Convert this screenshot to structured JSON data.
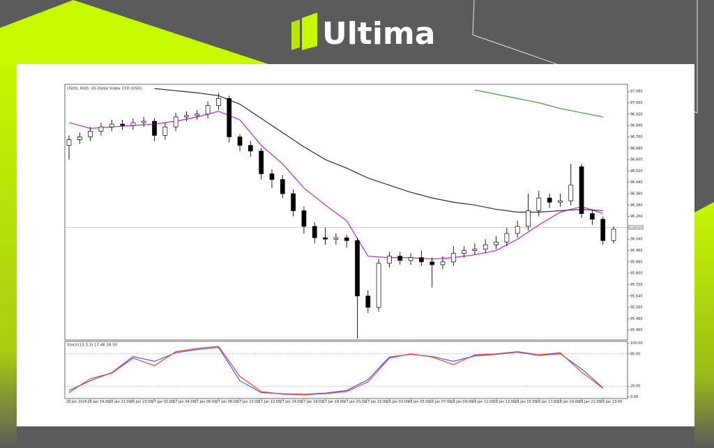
{
  "brand": "Ultima",
  "chart_data": [
    {
      "type": "candlestick",
      "title": "USDX, M30: US Dollar Index CFD (USD)",
      "categories": [
        "26 Jan 2026",
        null,
        "26 Jan 19:00",
        null,
        "26 Jan 21:00",
        null,
        "26 Jan 23:00",
        null,
        "27 Jan 02:00",
        null,
        "27 Jan 04:00",
        null,
        "27 Jan 06:00",
        null,
        "27 Jan 08:00",
        null,
        "27 Jan 10:00",
        null,
        "27 Jan 12:00",
        null,
        "27 Jan 14:00",
        null,
        "27 Jan 16:00",
        null,
        "27 Jan 18:00",
        null,
        "27 Jan 20:00",
        null,
        "27 Jan 22:00",
        null,
        "28 Jan 03:00",
        null,
        "28 Jan 05:00",
        null,
        "28 Jan 07:00",
        null,
        "28 Jan 09:00",
        null,
        "28 Jan 11:00",
        null,
        "28 Jan 13:00",
        null,
        "28 Jan 15:00",
        null,
        "28 Jan 17:00",
        null,
        "28 Jan 19:00",
        null,
        "28 Jan 21:00",
        null,
        "28 Jan 23:00",
        null
      ],
      "open": [
        96.7,
        96.74,
        96.76,
        96.8,
        96.83,
        96.85,
        96.84,
        96.86,
        96.87,
        96.77,
        96.83,
        96.9,
        96.91,
        96.92,
        96.98,
        97.03,
        96.76,
        96.7,
        96.66,
        96.5,
        96.46,
        96.36,
        96.24,
        96.13,
        96.05,
        96.04,
        96.05,
        96.03,
        95.64,
        95.56,
        95.87,
        95.92,
        95.89,
        95.91,
        95.88,
        95.86,
        95.88,
        95.94,
        95.96,
        95.97,
        96.0,
        96.02,
        96.08,
        96.13,
        96.24,
        96.33,
        96.3,
        96.31,
        96.55,
        96.22,
        96.18,
        96.03
      ],
      "high": [
        96.77,
        96.79,
        96.83,
        96.86,
        96.88,
        96.88,
        96.89,
        96.9,
        96.89,
        96.86,
        96.93,
        96.94,
        96.95,
        97.01,
        97.07,
        97.05,
        96.78,
        96.73,
        96.68,
        96.53,
        96.49,
        96.39,
        96.27,
        96.16,
        96.12,
        96.08,
        96.07,
        96.05,
        95.68,
        95.9,
        95.95,
        95.95,
        95.94,
        95.96,
        95.91,
        95.92,
        95.99,
        95.99,
        96.01,
        96.04,
        96.06,
        96.12,
        96.17,
        96.36,
        96.38,
        96.36,
        96.36,
        96.57,
        96.57,
        96.25,
        96.2,
        96.13
      ],
      "low": [
        96.6,
        96.71,
        96.73,
        96.77,
        96.8,
        96.81,
        96.81,
        96.83,
        96.73,
        96.74,
        96.8,
        96.87,
        96.88,
        96.89,
        96.95,
        96.72,
        96.66,
        96.62,
        96.46,
        96.4,
        96.33,
        96.2,
        96.08,
        96.01,
        96.0,
        96.0,
        95.98,
        95.34,
        95.52,
        95.53,
        95.84,
        95.86,
        95.86,
        95.85,
        95.7,
        95.83,
        95.85,
        95.91,
        95.93,
        95.94,
        95.97,
        95.99,
        96.05,
        96.1,
        96.2,
        96.26,
        96.27,
        96.28,
        96.19,
        96.14,
        96.0,
        96.01
      ],
      "close": [
        96.74,
        96.76,
        96.8,
        96.83,
        96.85,
        96.84,
        96.86,
        96.87,
        96.77,
        96.83,
        96.9,
        96.91,
        96.92,
        96.98,
        97.03,
        96.76,
        96.7,
        96.66,
        96.5,
        96.46,
        96.36,
        96.24,
        96.13,
        96.05,
        96.04,
        96.05,
        96.03,
        95.64,
        95.56,
        95.87,
        95.92,
        95.89,
        95.91,
        95.88,
        95.86,
        95.88,
        95.94,
        95.96,
        95.97,
        96.0,
        96.02,
        96.08,
        96.13,
        96.24,
        96.33,
        96.3,
        96.31,
        96.42,
        96.22,
        96.18,
        96.03,
        96.11
      ],
      "up_color": "#ffffff",
      "down_color": "#000000",
      "lines": [
        {
          "color": "#c21fd1",
          "x": [
            0,
            2,
            4,
            6,
            8,
            10,
            12,
            14,
            16,
            18,
            20,
            22,
            24,
            26,
            28,
            30,
            32,
            34,
            36,
            38,
            40,
            42,
            44,
            46,
            48,
            50
          ],
          "values": [
            96.86,
            96.82,
            96.83,
            96.84,
            96.85,
            96.87,
            96.9,
            96.94,
            96.88,
            96.7,
            96.57,
            96.4,
            96.28,
            96.17,
            95.92,
            95.91,
            95.91,
            95.9,
            95.91,
            95.93,
            95.96,
            96.04,
            96.14,
            96.23,
            96.27,
            96.22
          ]
        },
        {
          "color": "#2b2b2b",
          "x": [
            0,
            2,
            4,
            6,
            8,
            10,
            12,
            14,
            16,
            18,
            20,
            22,
            24,
            26,
            28,
            30,
            32,
            34,
            36,
            38,
            40,
            42,
            44,
            46,
            48,
            50
          ],
          "values": [
            null,
            null,
            null,
            null,
            97.1,
            97.085,
            97.07,
            97.05,
            96.99,
            96.89,
            96.79,
            96.69,
            96.6,
            96.54,
            96.47,
            96.42,
            96.37,
            96.33,
            96.3,
            96.28,
            96.25,
            96.23,
            96.23,
            96.24,
            96.25,
            96.24
          ]
        },
        {
          "color": "#3a9a3a",
          "x": [
            0,
            2,
            4,
            6,
            8,
            10,
            12,
            14,
            16,
            18,
            20,
            22,
            24,
            26,
            28,
            30,
            32,
            34,
            36,
            38,
            40,
            42,
            44,
            46,
            48,
            50
          ],
          "values": [
            null,
            null,
            null,
            null,
            null,
            null,
            null,
            null,
            null,
            null,
            null,
            null,
            null,
            null,
            null,
            null,
            null,
            null,
            null,
            97.09,
            97.06,
            97.03,
            97.0,
            96.96,
            96.93,
            96.9
          ]
        }
      ],
      "current_price": 96.123,
      "ylim": [
        95.33,
        97.13
      ],
      "yticks": [
        {
          "value": 95.4,
          "label": "95.400"
        },
        {
          "value": 95.48,
          "label": "95.480"
        },
        {
          "value": 95.56,
          "label": "95.560"
        },
        {
          "value": 95.64,
          "label": "95.640"
        },
        {
          "value": 95.72,
          "label": "95.720"
        },
        {
          "value": 95.8,
          "label": "95.800"
        },
        {
          "value": 95.88,
          "label": "95.880"
        },
        {
          "value": 95.96,
          "label": "95.960"
        },
        {
          "value": 96.04,
          "label": "96.040"
        },
        {
          "value": 96.12,
          "label": "96.120"
        },
        {
          "value": 96.2,
          "label": "96.200"
        },
        {
          "value": 96.28,
          "label": "96.280"
        },
        {
          "value": 96.36,
          "label": "96.360"
        },
        {
          "value": 96.44,
          "label": "96.440"
        },
        {
          "value": 96.52,
          "label": "96.520"
        },
        {
          "value": 96.6,
          "label": "96.600"
        },
        {
          "value": 96.68,
          "label": "96.680"
        },
        {
          "value": 96.76,
          "label": "96.760"
        },
        {
          "value": 96.84,
          "label": "96.840"
        },
        {
          "value": 96.92,
          "label": "96.920"
        },
        {
          "value": 97.0,
          "label": "97.000"
        },
        {
          "value": 97.08,
          "label": "97.080"
        }
      ]
    },
    {
      "type": "line",
      "title": "Stoch(13,3,3) 17.46 18.50",
      "series": [
        {
          "color": "#3b5bff",
          "x": [
            0,
            2,
            4,
            6,
            8,
            10,
            12,
            14,
            16,
            18,
            20,
            22,
            24,
            26,
            28,
            30,
            32,
            34,
            36,
            38,
            40,
            42,
            44,
            46,
            48,
            50
          ],
          "values": [
            12,
            30,
            45,
            75,
            66,
            82,
            88,
            92,
            30,
            8,
            6,
            5,
            7,
            12,
            32,
            74,
            79,
            75,
            66,
            76,
            79,
            83,
            77,
            80,
            52,
            17
          ]
        },
        {
          "color": "#ff3b30",
          "x": [
            0,
            2,
            4,
            6,
            8,
            10,
            12,
            14,
            16,
            18,
            20,
            22,
            24,
            26,
            28,
            30,
            32,
            34,
            36,
            38,
            40,
            42,
            44,
            46,
            48,
            50
          ],
          "values": [
            8,
            34,
            44,
            72,
            58,
            84,
            90,
            94,
            38,
            10,
            5,
            4,
            6,
            10,
            28,
            72,
            80,
            74,
            60,
            78,
            80,
            84,
            78,
            82,
            46,
            16
          ]
        }
      ],
      "levels": [
        80,
        20
      ],
      "ylim": [
        -3,
        103
      ],
      "yticks": [
        {
          "value": 100,
          "label": "100.00"
        },
        {
          "value": 80,
          "label": "80.00"
        },
        {
          "value": 20,
          "label": "20.00"
        },
        {
          "value": 0,
          "label": "0.00"
        }
      ]
    }
  ]
}
